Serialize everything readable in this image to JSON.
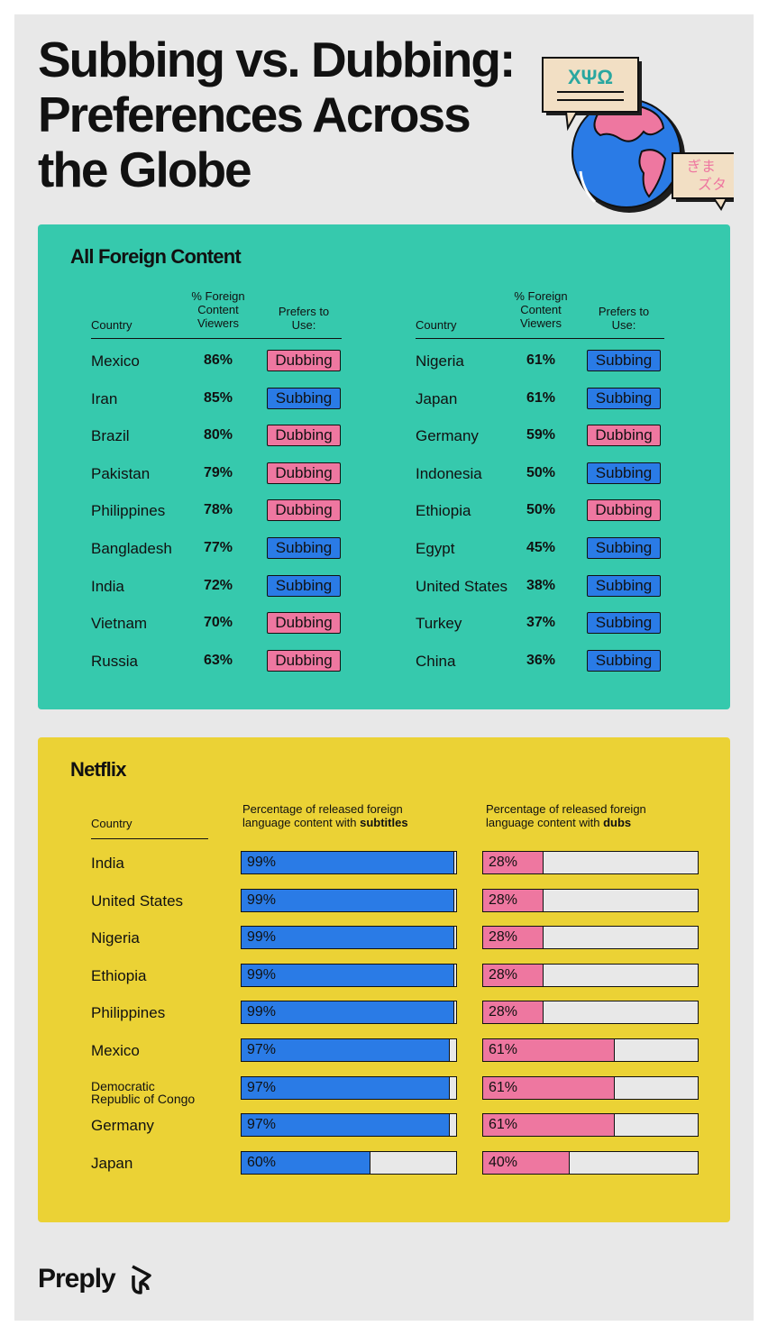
{
  "title_lines": [
    "Subbing vs. Dubbing:",
    "Preferences Across",
    "the Globe"
  ],
  "illustration": {
    "bubble_left_text": "ΧΨΩ",
    "bubble_right_line1": "ぎま",
    "bubble_right_line2": "ズタ"
  },
  "all_foreign": {
    "title": "All Foreign Content",
    "headers": {
      "country": "Country",
      "viewers": "% Foreign Content Viewers",
      "prefers": "Prefers to Use:"
    },
    "colors": {
      "Dubbing": "#ee77a0",
      "Subbing": "#2a7be6"
    },
    "left": [
      {
        "country": "Mexico",
        "pct": "86%",
        "pref": "Dubbing"
      },
      {
        "country": "Iran",
        "pct": "85%",
        "pref": "Subbing"
      },
      {
        "country": "Brazil",
        "pct": "80%",
        "pref": "Dubbing"
      },
      {
        "country": "Pakistan",
        "pct": "79%",
        "pref": "Dubbing"
      },
      {
        "country": "Philippines",
        "pct": "78%",
        "pref": "Dubbing"
      },
      {
        "country": "Bangladesh",
        "pct": "77%",
        "pref": "Subbing"
      },
      {
        "country": "India",
        "pct": "72%",
        "pref": "Subbing"
      },
      {
        "country": "Vietnam",
        "pct": "70%",
        "pref": "Dubbing"
      },
      {
        "country": "Russia",
        "pct": "63%",
        "pref": "Dubbing"
      }
    ],
    "right": [
      {
        "country": "Nigeria",
        "pct": "61%",
        "pref": "Subbing"
      },
      {
        "country": "Japan",
        "pct": "61%",
        "pref": "Subbing"
      },
      {
        "country": "Germany",
        "pct": "59%",
        "pref": "Dubbing"
      },
      {
        "country": "Indonesia",
        "pct": "50%",
        "pref": "Subbing"
      },
      {
        "country": "Ethiopia",
        "pct": "50%",
        "pref": "Dubbing"
      },
      {
        "country": "Egypt",
        "pct": "45%",
        "pref": "Subbing"
      },
      {
        "country": "United States",
        "pct": "38%",
        "pref": "Subbing"
      },
      {
        "country": "Turkey",
        "pct": "37%",
        "pref": "Subbing"
      },
      {
        "country": "China",
        "pct": "36%",
        "pref": "Subbing"
      }
    ]
  },
  "netflix": {
    "title": "Netflix",
    "headers": {
      "country": "Country",
      "subtitles_prefix": "Percentage of released foreign",
      "subtitles_line2": "language content with ",
      "subtitles_bold": "subtitles",
      "dubs_prefix": "Percentage of released foreign",
      "dubs_line2": "language content with ",
      "dubs_bold": "dubs"
    }
  },
  "chart_data": {
    "type": "bar",
    "title": "Netflix",
    "categories": [
      "India",
      "United States",
      "Nigeria",
      "Ethiopia",
      "Philippines",
      "Mexico",
      "Democratic Republic of Congo",
      "Germany",
      "Japan"
    ],
    "series": [
      {
        "name": "Percentage of released foreign language content with subtitles",
        "color": "#2a7be6",
        "values": [
          99,
          99,
          99,
          99,
          99,
          97,
          97,
          97,
          60
        ],
        "labels": [
          "99%",
          "99%",
          "99%",
          "99%",
          "99%",
          "97%",
          "97%",
          "97%",
          "60%"
        ]
      },
      {
        "name": "Percentage of released foreign language content with dubs",
        "color": "#ee77a0",
        "values": [
          28,
          28,
          28,
          28,
          28,
          61,
          61,
          61,
          40
        ],
        "labels": [
          "28%",
          "28%",
          "28%",
          "28%",
          "28%",
          "61%",
          "61%",
          "61%",
          "40%"
        ]
      }
    ],
    "ylim": [
      0,
      100
    ],
    "orientation": "horizontal"
  },
  "brand": {
    "name": "Preply"
  }
}
